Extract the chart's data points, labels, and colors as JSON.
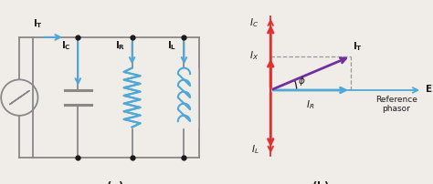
{
  "background_color": "#f0ede8",
  "fig_width": 4.74,
  "fig_height": 2.02,
  "dpi": 100,
  "wire_color": "#888888",
  "blue_color": "#4fa8d5",
  "red_color": "#e03030",
  "purple_color": "#7030a0",
  "node_color": "#1a1a1a",
  "text_color": "#1a1a1a",
  "dashed_color": "#999999"
}
